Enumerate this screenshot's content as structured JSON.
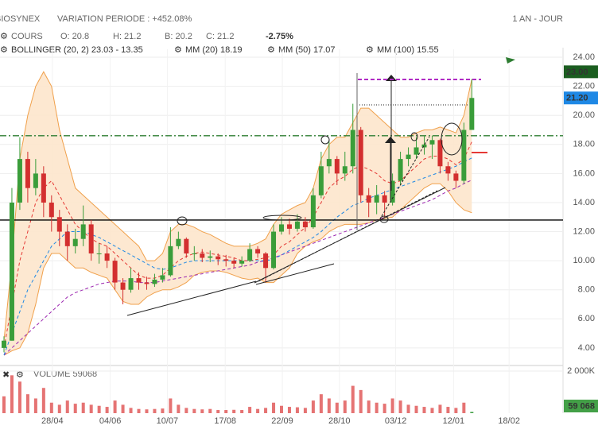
{
  "chart_data": {
    "type": "candlestick",
    "title": "BIOSYNEX",
    "subtitle": "VARIATION PERIODE : +452.08%",
    "period": "1 AN - JOUR",
    "quote": {
      "label": "COURS",
      "open": "O: 20.8",
      "high": "H: 21.2",
      "low": "B: 20.2",
      "close": "C: 21.2",
      "change": "-2.75%"
    },
    "indicators": [
      {
        "name": "BOLLINGER (20, 2) 23.03 - 13.35",
        "color": "#f0a04b"
      },
      {
        "name": "MM (20) 18.19",
        "color": "#e53935"
      },
      {
        "name": "MM (50) 17.07",
        "color": "#1e88e5"
      },
      {
        "name": "MM (100) 15.55",
        "color": "#9c27b0"
      }
    ],
    "up_color": "#3a9d3a",
    "down_color": "#d32f2f",
    "open": [
      4,
      4.5,
      14,
      17,
      15,
      16,
      14,
      13,
      12,
      11,
      11.5,
      12.5,
      10.5,
      10.5,
      10,
      8.5,
      8,
      8.8,
      8.5,
      8.4,
      8.7,
      9,
      11,
      11.5,
      10.5,
      10.5,
      10.2,
      10.3,
      10.1,
      10,
      9.8,
      10,
      10.8,
      10.5,
      9.5,
      12,
      12.5,
      12.2,
      12.7,
      12.3,
      14.5,
      16.5,
      17,
      16,
      16.5,
      19,
      14.5,
      14,
      14.5,
      14,
      15.5,
      17,
      17.3,
      17.8,
      18,
      18.3,
      16.5,
      16,
      15.5,
      19
    ],
    "high": [
      4.8,
      15,
      18.5,
      17.5,
      17,
      16.5,
      14.5,
      13.5,
      12.5,
      12.2,
      13.8,
      12.8,
      11.2,
      11,
      10.2,
      8.8,
      9.5,
      9.2,
      8.9,
      9.1,
      9.5,
      12.3,
      12,
      11.6,
      11,
      10.8,
      10.7,
      10.5,
      10.4,
      10.2,
      10.3,
      11.2,
      11,
      10.6,
      12.5,
      13,
      12.9,
      13.2,
      13,
      15,
      17.5,
      18.3,
      17.2,
      17.5,
      20.8,
      19.2,
      15,
      15.2,
      14.8,
      16,
      17.5,
      17.8,
      18.5,
      18.6,
      18.6,
      18.4,
      16.8,
      16.2,
      19.5,
      22.5
    ],
    "low": [
      3.7,
      4.5,
      13.5,
      14,
      14.5,
      13,
      12,
      11,
      10,
      10.5,
      11,
      10,
      9.8,
      9.5,
      8,
      7,
      7.8,
      8,
      8,
      8.2,
      8.5,
      8.9,
      10.8,
      10.2,
      10,
      9.9,
      9.9,
      9.7,
      9.6,
      9.5,
      9.6,
      9.9,
      10.2,
      8.5,
      9.4,
      11.8,
      11.8,
      12,
      12,
      12.2,
      14.3,
      16,
      15.2,
      15.5,
      16,
      14,
      13,
      13.2,
      13,
      13.8,
      15.2,
      16.5,
      17,
      17.3,
      17,
      16,
      15.5,
      15,
      15.3,
      19
    ],
    "close": [
      4.5,
      14,
      17,
      15,
      16,
      14,
      13,
      12,
      11,
      11.5,
      12.5,
      10.5,
      10.5,
      10,
      8.5,
      8,
      8.8,
      8.5,
      8.4,
      8.7,
      9,
      11,
      11.5,
      10.5,
      10.5,
      10.2,
      10.3,
      10.1,
      10,
      9.8,
      10,
      10.8,
      10.5,
      9.5,
      12,
      12.5,
      12.2,
      12.7,
      12.3,
      14.5,
      16.5,
      17,
      16,
      16.5,
      19,
      14.5,
      14,
      14.5,
      14,
      15.5,
      17,
      17.3,
      17.8,
      18,
      18.3,
      16.5,
      16,
      15.5,
      19,
      21.2
    ],
    "boll_upper": [
      4.5,
      10,
      17,
      20,
      22,
      23,
      22,
      19,
      17,
      15,
      14.5,
      14,
      13.5,
      13,
      12.5,
      12,
      11.5,
      11,
      10,
      10,
      10.5,
      12,
      12.5,
      12.5,
      12.3,
      12,
      11.8,
      11.5,
      11.2,
      11,
      11,
      11,
      11.2,
      11.5,
      12.5,
      13.2,
      13.5,
      13.8,
      14,
      15,
      17,
      18,
      18.5,
      18.5,
      19.5,
      20.5,
      20.5,
      20,
      19.5,
      19,
      18.5,
      18.5,
      18.8,
      19,
      19,
      19.2,
      19,
      18.8,
      20,
      22.5
    ],
    "boll_lower": [
      3.5,
      3.8,
      4,
      5,
      7,
      9.5,
      10.5,
      10.5,
      10,
      9.5,
      9.5,
      9.2,
      9,
      8.8,
      8,
      7.2,
      7,
      7,
      7.5,
      7.8,
      8,
      8,
      8.2,
      8.5,
      9,
      9.2,
      9.3,
      9.3,
      9.2,
      9,
      8.8,
      8.7,
      8.8,
      8.5,
      8.5,
      9,
      9.5,
      10.5,
      11,
      11.3,
      11.5,
      12,
      12.3,
      12.5,
      12.5,
      12.5,
      12.6,
      12.8,
      12.9,
      13,
      13.5,
      14,
      14.5,
      15,
      15.3,
      15.3,
      14.8,
      14,
      13.5,
      13.3
    ],
    "mm20": [
      4,
      7,
      10,
      12,
      14,
      15,
      15.5,
      14.5,
      13.5,
      12.5,
      12,
      11.5,
      11.2,
      11,
      10.5,
      10,
      9.5,
      9,
      8.8,
      8.8,
      9,
      9.5,
      10,
      10.3,
      10.5,
      10.6,
      10.5,
      10.4,
      10.3,
      10.2,
      10,
      10,
      10.1,
      10.2,
      10.4,
      11,
      11.3,
      11.8,
      12.3,
      13,
      14,
      15,
      15.5,
      15.8,
      16.3,
      16.5,
      16.3,
      16,
      15.5,
      15.3,
      15.5,
      16,
      16.5,
      17,
      17.2,
      17.2,
      17,
      16.6,
      17,
      18.19
    ],
    "mm50": [
      3.5,
      5,
      6.5,
      8,
      9,
      10,
      11,
      11.5,
      12,
      12,
      12,
      11.8,
      11.6,
      11.3,
      11,
      10.7,
      10.4,
      10.1,
      9.8,
      9.5,
      9.4,
      9.5,
      9.7,
      9.9,
      10,
      10,
      10,
      10,
      10,
      10,
      10,
      10,
      10,
      10,
      10.1,
      10.4,
      10.7,
      11,
      11.3,
      11.6,
      12,
      12.5,
      13,
      13.4,
      13.8,
      14,
      14.3,
      14.5,
      14.7,
      14.9,
      15.1,
      15.3,
      15.5,
      15.7,
      15.9,
      16.1,
      16.3,
      16.5,
      16.8,
      17.07
    ],
    "mm100": [
      3.5,
      4,
      4.5,
      5,
      5.5,
      6,
      6.5,
      7,
      7.5,
      7.8,
      8,
      8.2,
      8.4,
      8.5,
      8.6,
      8.6,
      8.6,
      8.5,
      8.5,
      8.5,
      8.6,
      8.7,
      8.8,
      8.9,
      9,
      9.1,
      9.2,
      9.3,
      9.4,
      9.5,
      9.6,
      9.7,
      9.9,
      10,
      10.2,
      10.4,
      10.6,
      10.8,
      11,
      11.2,
      11.4,
      11.6,
      11.8,
      12,
      12.2,
      12.4,
      12.6,
      12.8,
      13,
      13.2,
      13.4,
      13.6,
      13.8,
      14,
      14.2,
      14.5,
      14.8,
      15,
      15.3,
      15.55
    ],
    "volume_title": "VOLUME 59068",
    "volume_color": "#e57373",
    "volume_last_color": "#43a047",
    "volume": [
      800000,
      1800000,
      1500000,
      900000,
      700000,
      1200000,
      500000,
      400000,
      600000,
      450000,
      500000,
      400000,
      350000,
      300000,
      600000,
      400000,
      250000,
      200000,
      180000,
      200000,
      220000,
      700000,
      400000,
      250000,
      200000,
      180000,
      200000,
      150000,
      150000,
      160000,
      150000,
      300000,
      200000,
      250000,
      500000,
      350000,
      300000,
      280000,
      250000,
      600000,
      900000,
      700000,
      500000,
      600000,
      1300000,
      1100000,
      600000,
      500000,
      450000,
      700000,
      600000,
      400000,
      350000,
      300000,
      250000,
      400000,
      300000,
      250000,
      500000,
      59068
    ],
    "volume_value_labels": {
      "59": "59 068"
    },
    "xlim": [
      -0.5,
      70.5
    ],
    "xticks": [
      {
        "value": 6.1,
        "label": "28/04"
      },
      {
        "value": 13.4,
        "label": "04/06"
      },
      {
        "value": 20.6,
        "label": "10/07"
      },
      {
        "value": 27.9,
        "label": "17/08"
      },
      {
        "value": 35.1,
        "label": "22/09"
      },
      {
        "value": 42.3,
        "label": "28/10"
      },
      {
        "value": 49.4,
        "label": "03/12"
      },
      {
        "value": 56.7,
        "label": "12/01"
      },
      {
        "value": 63.7,
        "label": "18/02"
      }
    ],
    "ylim": [
      2.9,
      24.55
    ],
    "yticks": [
      {
        "value": 4,
        "label": "4.00"
      },
      {
        "value": 6,
        "label": "6.00"
      },
      {
        "value": 8,
        "label": "8.00"
      },
      {
        "value": 10,
        "label": "10.00"
      },
      {
        "value": 12,
        "label": "12.00"
      },
      {
        "value": 14,
        "label": "14.00"
      },
      {
        "value": 16,
        "label": "16.00"
      },
      {
        "value": 18,
        "label": "18.00"
      },
      {
        "value": 20,
        "label": "20.00"
      },
      {
        "value": 22,
        "label": "22.00"
      },
      {
        "value": 24,
        "label": "24.00"
      }
    ],
    "y2lim": [
      0,
      2190000
    ],
    "y2ticks": [
      {
        "value": 2000000,
        "label": "2 000K"
      }
    ],
    "price_tags": [
      {
        "value": 23,
        "label": "23.00",
        "color": "#1b5e20"
      },
      {
        "value": 21.2,
        "label": "21.20",
        "color": "#1e88e5"
      }
    ],
    "hlines": [
      {
        "value": 18.6,
        "color": "#2e7d32",
        "dash": "8 3 2 3"
      },
      {
        "value": 12.8,
        "color": "#000000",
        "dash": ""
      }
    ],
    "grid": true
  }
}
